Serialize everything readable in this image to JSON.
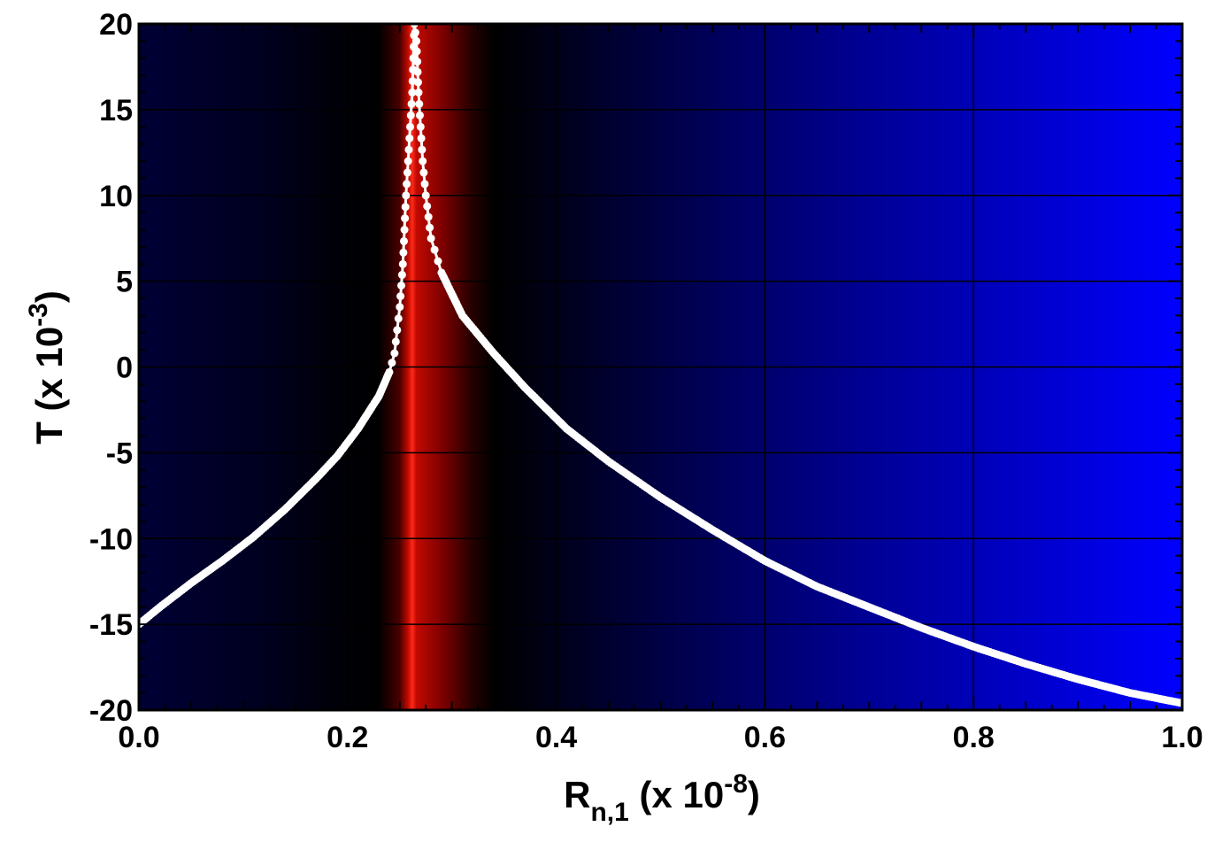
{
  "chart_data": {
    "type": "line",
    "title": "",
    "xlabel": {
      "main": "R",
      "subscript": "n,1",
      "suffix": " (x 10",
      "exponent": "-8",
      "close": ")"
    },
    "ylabel": {
      "main": "T   (x 10",
      "exponent": "-3",
      "close": ")"
    },
    "xlim": [
      0.0,
      1.0
    ],
    "ylim": [
      -20,
      20
    ],
    "xticks": [
      0.0,
      0.2,
      0.4,
      0.6,
      0.8,
      1.0
    ],
    "xtick_labels": [
      "0.0",
      "0.2",
      "0.4",
      "0.6",
      "0.8",
      "1.0"
    ],
    "yticks": [
      -20,
      -15,
      -10,
      -5,
      0,
      5,
      10,
      15,
      20
    ],
    "ytick_labels": [
      "-20",
      "-15",
      "-10",
      "-5",
      "0",
      "5",
      "10",
      "15",
      "20"
    ],
    "grid": true,
    "legend": "none",
    "background": {
      "type": "heatmap",
      "description_colors": [
        "#ff2a1a",
        "#7a0000",
        "#000000",
        "#000033",
        "#0000ff"
      ],
      "peak_x": 0.262,
      "peak_color": "#ff2a1a",
      "dark_band": [
        0.23,
        0.34
      ],
      "edge_color_right": "#0000ff"
    },
    "series": [
      {
        "color": "#ffffff",
        "marker": "circle",
        "points": [
          [
            0.0,
            -15.0
          ],
          [
            0.02,
            -14.0
          ],
          [
            0.05,
            -12.6
          ],
          [
            0.08,
            -11.3
          ],
          [
            0.11,
            -9.9
          ],
          [
            0.14,
            -8.3
          ],
          [
            0.17,
            -6.5
          ],
          [
            0.19,
            -5.2
          ],
          [
            0.21,
            -3.6
          ],
          [
            0.23,
            -1.7
          ],
          [
            0.24,
            -0.3
          ],
          [
            0.245,
            0.8
          ],
          [
            0.25,
            3.5
          ],
          [
            0.253,
            6.0
          ],
          [
            0.256,
            10.0
          ],
          [
            0.258,
            12.0
          ],
          [
            0.26,
            14.0
          ],
          [
            0.262,
            16.0
          ],
          [
            0.264,
            20.0
          ],
          [
            0.266,
            19.0
          ],
          [
            0.268,
            16.0
          ],
          [
            0.27,
            14.0
          ],
          [
            0.272,
            12.0
          ],
          [
            0.275,
            10.0
          ],
          [
            0.28,
            7.5
          ],
          [
            0.29,
            5.5
          ],
          [
            0.31,
            3.0
          ],
          [
            0.34,
            0.8
          ],
          [
            0.37,
            -1.2
          ],
          [
            0.41,
            -3.6
          ],
          [
            0.45,
            -5.5
          ],
          [
            0.5,
            -7.6
          ],
          [
            0.55,
            -9.5
          ],
          [
            0.6,
            -11.3
          ],
          [
            0.65,
            -12.8
          ],
          [
            0.7,
            -14.0
          ],
          [
            0.75,
            -15.2
          ],
          [
            0.8,
            -16.3
          ],
          [
            0.85,
            -17.3
          ],
          [
            0.9,
            -18.2
          ],
          [
            0.95,
            -19.0
          ],
          [
            1.0,
            -19.6
          ]
        ]
      }
    ]
  }
}
